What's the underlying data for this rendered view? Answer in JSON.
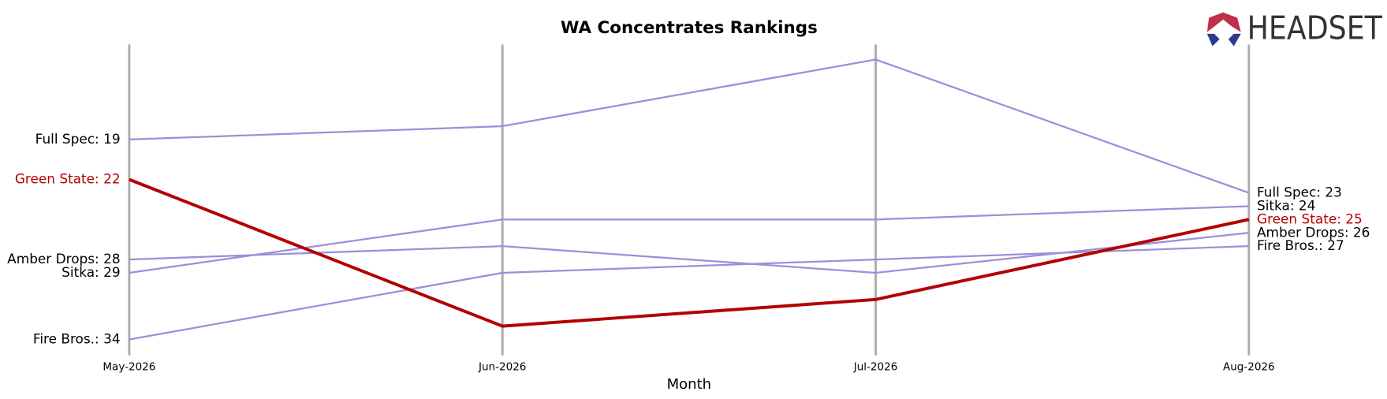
{
  "chart_data": {
    "type": "bump",
    "title": "WA Concentrates Rankings",
    "x_label": "Month",
    "logo": "HEADSET",
    "categories": [
      "May-2026",
      "Jun-2026",
      "Jul-2026",
      "Aug-2026"
    ],
    "ylim": [
      12,
      35
    ],
    "y_inverted": true,
    "series": [
      {
        "name": "Full Spec",
        "color": "#9b8fdb",
        "values": [
          19,
          18,
          13,
          23
        ],
        "value_labels": [
          "Full Spec: 19",
          null,
          null,
          "Full Spec: 23"
        ]
      },
      {
        "name": "Sitka",
        "color": "#9b8fdb",
        "values": [
          29,
          25,
          25,
          24
        ],
        "value_labels": [
          "Sitka: 29",
          null,
          null,
          "Sitka: 24"
        ]
      },
      {
        "name": "Amber Drops",
        "color": "#9b8fdb",
        "values": [
          28,
          27,
          29,
          26
        ],
        "value_labels": [
          "Amber Drops: 28",
          null,
          null,
          "Amber Drops: 26"
        ]
      },
      {
        "name": "Fire Bros.",
        "color": "#9b8fdb",
        "values": [
          34,
          29,
          28,
          27
        ],
        "value_labels": [
          "Fire Bros.: 34",
          null,
          null,
          "Fire Bros.: 27"
        ]
      },
      {
        "name": "Green State",
        "color": "#b30000",
        "highlight": true,
        "values": [
          22,
          33,
          31,
          25
        ],
        "value_labels": [
          "Green State: 22",
          null,
          null,
          "Green State: 25"
        ]
      }
    ]
  }
}
